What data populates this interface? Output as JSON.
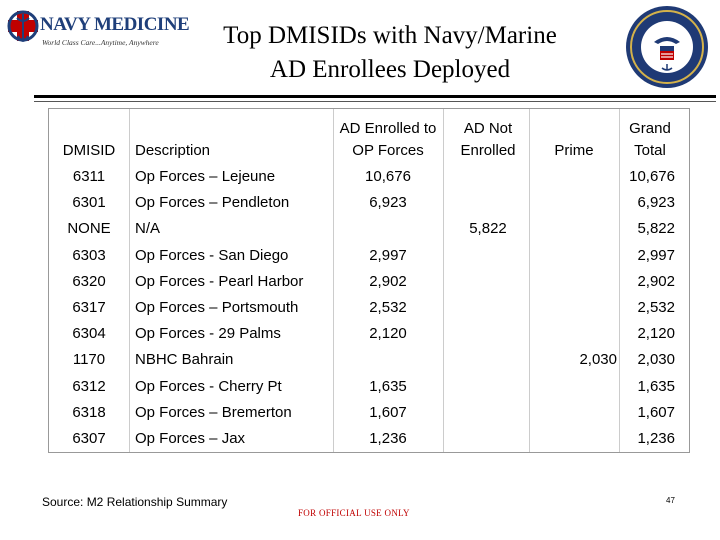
{
  "logo_left": {
    "name": "NAVY MEDICINE",
    "tagline": "World Class Care...Anytime, Anywhere"
  },
  "title_line1": "Top DMISIDs with Navy/Marine",
  "title_line2": "AD Enrollees Deployed",
  "table": {
    "headers": {
      "dmisid": "DMISID",
      "description": "Description",
      "enrolled_l1": "AD Enrolled to",
      "enrolled_l2": "OP Forces",
      "not_l1": "AD Not",
      "not_l2": "Enrolled",
      "prime": "Prime",
      "total_l1": "Grand",
      "total_l2": "Total"
    },
    "rows": [
      {
        "dmisid": "6311",
        "description": "Op Forces – Lejeune",
        "enrolled": "10,676",
        "not_enrolled": "",
        "prime": "",
        "total": "10,676"
      },
      {
        "dmisid": "6301",
        "description": "Op Forces – Pendleton",
        "enrolled": "6,923",
        "not_enrolled": "",
        "prime": "",
        "total": "6,923"
      },
      {
        "dmisid": "NONE",
        "description": "N/A",
        "enrolled": "",
        "not_enrolled": "5,822",
        "prime": "",
        "total": "5,822"
      },
      {
        "dmisid": "6303",
        "description": "Op Forces - San Diego",
        "enrolled": "2,997",
        "not_enrolled": "",
        "prime": "",
        "total": "2,997"
      },
      {
        "dmisid": "6320",
        "description": "Op Forces - Pearl Harbor",
        "enrolled": "2,902",
        "not_enrolled": "",
        "prime": "",
        "total": "2,902"
      },
      {
        "dmisid": "6317",
        "description": "Op Forces – Portsmouth",
        "enrolled": "2,532",
        "not_enrolled": "",
        "prime": "",
        "total": "2,532"
      },
      {
        "dmisid": "6304",
        "description": "Op Forces - 29 Palms",
        "enrolled": "2,120",
        "not_enrolled": "",
        "prime": "",
        "total": "2,120"
      },
      {
        "dmisid": "1170",
        "description": "NBHC Bahrain",
        "enrolled": "",
        "not_enrolled": "",
        "prime": "2,030",
        "total": "2,030"
      },
      {
        "dmisid": "6312",
        "description": "Op Forces - Cherry Pt",
        "enrolled": "1,635",
        "not_enrolled": "",
        "prime": "",
        "total": "1,635"
      },
      {
        "dmisid": "6318",
        "description": "Op Forces – Bremerton",
        "enrolled": "1,607",
        "not_enrolled": "",
        "prime": "",
        "total": "1,607"
      },
      {
        "dmisid": "6307",
        "description": "Op Forces – Jax",
        "enrolled": "1,236",
        "not_enrolled": "",
        "prime": "",
        "total": "1,236"
      }
    ]
  },
  "footer": {
    "source": "Source:  M2 Relationship Summary",
    "classification": "FOR OFFICIAL USE ONLY",
    "page_number": "47"
  }
}
